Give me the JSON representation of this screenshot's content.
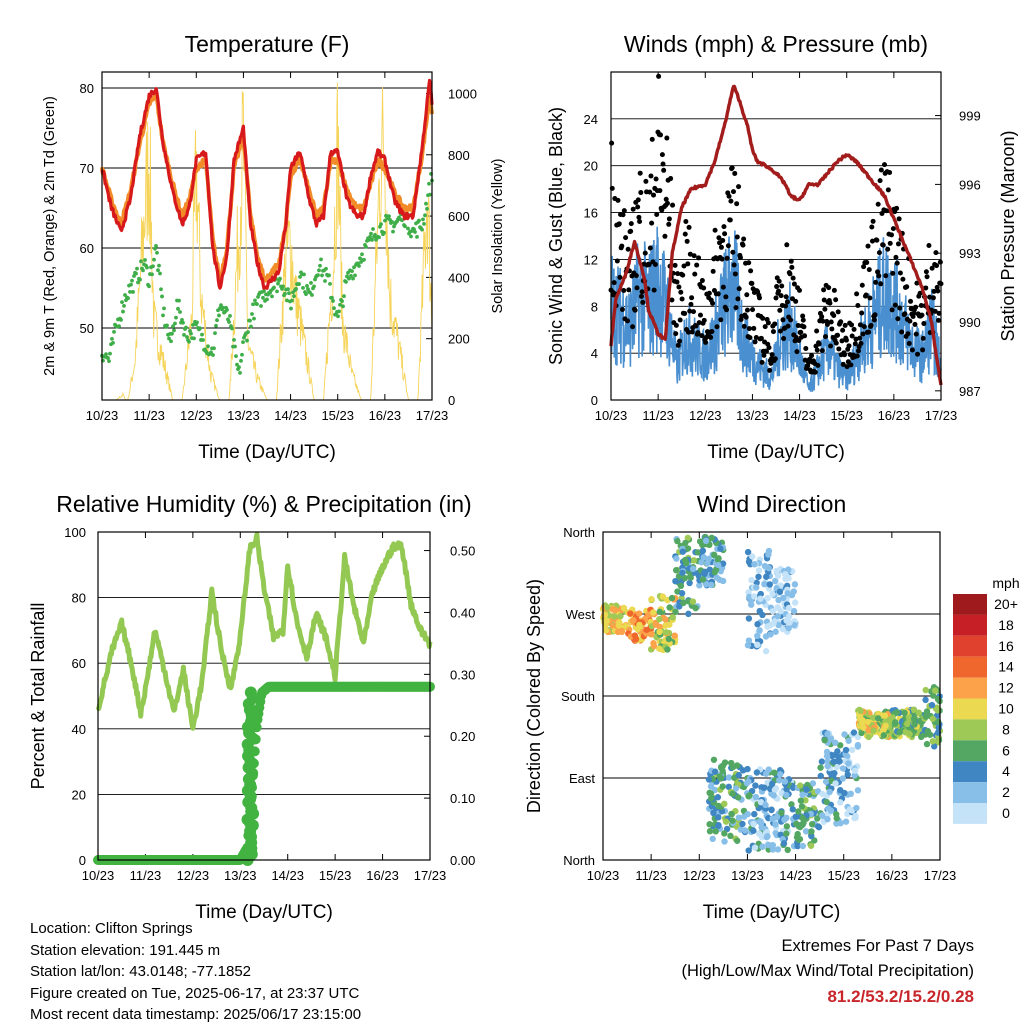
{
  "x_ticks": [
    "10/23",
    "11/23",
    "12/23",
    "13/23",
    "14/23",
    "15/23",
    "16/23",
    "17/23"
  ],
  "x_title": "Time (Day/UTC)",
  "colors": {
    "temp2m": "#d7191c",
    "temp9m": "#f28c28",
    "dewpoint": "#3fae49",
    "solar": "#f6d45a",
    "wind": "#4a90d0",
    "gust": "#000000",
    "pressure": "#a21c1c",
    "rh": "#93c953",
    "precip": "#42b341",
    "extremes": "#c8262a"
  },
  "chart_data": [
    {
      "type": "line",
      "title": "Temperature (F)",
      "ylabel": "2m & 9m T (Red, Orange) & 2m Td (Green)",
      "ylabel_right": "Solar Insolation (Yellow)",
      "ylim": [
        41,
        82
      ],
      "yticks": [
        50,
        60,
        70,
        80
      ],
      "ylim_right": [
        0,
        1070
      ],
      "yticks_right": [
        0,
        200,
        400,
        600,
        800,
        1000
      ],
      "grid": true,
      "series": [
        {
          "x": [
            0,
            0.2,
            0.4,
            0.6,
            0.8,
            1.0,
            1.15,
            1.3,
            1.5,
            1.7,
            1.85,
            2.0,
            2.2,
            2.35,
            2.5,
            2.65,
            2.8,
            3.0,
            3.15,
            3.3,
            3.45,
            3.6,
            3.75,
            3.9,
            4.0,
            4.2,
            4.4,
            4.55,
            4.7,
            4.85,
            5.0,
            5.2,
            5.4,
            5.55,
            5.7,
            5.85,
            6.0,
            6.2,
            6.4,
            6.6,
            6.8,
            6.95,
            7.0
          ],
          "values": [
            70,
            65,
            62,
            66,
            74,
            79,
            80,
            73,
            67,
            63,
            65,
            71,
            72,
            60,
            55,
            59,
            71,
            75,
            63,
            58,
            55,
            56,
            57,
            63,
            70,
            72,
            66,
            63,
            64,
            72,
            72,
            66,
            64,
            64,
            69,
            72,
            71,
            66,
            64,
            64,
            73,
            81,
            78
          ]
        },
        {
          "x": [
            0,
            0.2,
            0.4,
            0.6,
            0.8,
            1.0,
            1.15,
            1.3,
            1.5,
            1.7,
            1.85,
            2.0,
            2.2,
            2.35,
            2.5,
            2.65,
            2.8,
            3.0,
            3.15,
            3.3,
            3.45,
            3.6,
            3.75,
            3.9,
            4.0,
            4.2,
            4.4,
            4.55,
            4.7,
            4.85,
            5.0,
            5.2,
            5.4,
            5.55,
            5.7,
            5.85,
            6.0,
            6.2,
            6.4,
            6.6,
            6.8,
            6.95,
            7.0
          ],
          "values": [
            70,
            66,
            63,
            67,
            73,
            78,
            79,
            73,
            68,
            64,
            66,
            70,
            71,
            61,
            56,
            60,
            70,
            74,
            64,
            59,
            56,
            57,
            58,
            63,
            69,
            71,
            67,
            64,
            65,
            71,
            71,
            67,
            65,
            65,
            68,
            71,
            70,
            67,
            65,
            65,
            72,
            79,
            77
          ]
        },
        {
          "x": [
            0,
            0.15,
            0.3,
            0.5,
            0.7,
            0.9,
            1.0,
            1.15,
            1.3,
            1.45,
            1.6,
            1.8,
            2.0,
            2.2,
            2.35,
            2.5,
            2.7,
            2.9,
            3.0,
            3.2,
            3.4,
            3.6,
            3.8,
            4.0,
            4.2,
            4.4,
            4.6,
            4.8,
            5.0,
            5.2,
            5.4,
            5.6,
            5.8,
            6.0,
            6.2,
            6.4,
            6.6,
            6.8,
            7.0
          ],
          "values": [
            47,
            46,
            50,
            54,
            56,
            58,
            56,
            60,
            52,
            48,
            53,
            49,
            50,
            48,
            47,
            53,
            51,
            44,
            48,
            52,
            54,
            55,
            56,
            53,
            57,
            54,
            58,
            56,
            51,
            56,
            58,
            60,
            62,
            63,
            63,
            64,
            62,
            63,
            69
          ]
        },
        {
          "x": [
            0,
            0.15,
            0.3,
            0.45,
            0.5,
            0.55,
            0.7,
            0.9,
            1.0,
            1.1,
            1.3,
            1.5,
            1.7,
            1.9,
            2.0,
            2.1,
            2.3,
            2.5,
            2.7,
            2.9,
            3.0,
            3.1,
            3.3,
            3.5,
            3.7,
            3.9,
            4.0,
            4.1,
            4.3,
            4.5,
            4.7,
            4.9,
            5.0,
            5.1,
            5.3,
            5.5,
            5.7,
            5.9,
            6.0,
            6.1,
            6.3,
            6.5,
            6.7,
            6.9,
            7.0
          ],
          "values": [
            0,
            0,
            0,
            20,
            0,
            0,
            150,
            700,
            950,
            300,
            150,
            0,
            0,
            300,
            900,
            400,
            100,
            0,
            0,
            650,
            1000,
            200,
            80,
            0,
            0,
            550,
            600,
            400,
            200,
            0,
            0,
            500,
            1000,
            300,
            100,
            0,
            0,
            900,
            1000,
            400,
            200,
            0,
            0,
            800,
            300
          ]
        }
      ]
    },
    {
      "type": "line",
      "title": "Winds (mph) & Pressure (mb)",
      "ylabel": "Sonic Wind & Gust (Blue, Black)",
      "ylabel_right": "Station Pressure (Maroon)",
      "ylim": [
        0,
        28
      ],
      "yticks": [
        0,
        4,
        8,
        12,
        16,
        20,
        24
      ],
      "ylim_right": [
        986.6,
        1000.9
      ],
      "yticks_right": [
        987,
        990,
        993,
        996,
        999
      ],
      "grid": true,
      "series": [
        {
          "x": [
            0,
            0.2,
            0.4,
            0.6,
            0.8,
            1.0,
            1.2,
            1.4,
            1.6,
            1.8,
            2.0,
            2.2,
            2.4,
            2.6,
            2.8,
            3.0,
            3.2,
            3.4,
            3.6,
            3.8,
            4.0,
            4.2,
            4.4,
            4.6,
            4.8,
            5.0,
            5.2,
            5.4,
            5.6,
            5.8,
            6.0,
            6.2,
            6.4,
            6.6,
            6.8,
            7.0
          ],
          "values": [
            9,
            8,
            7,
            10,
            9,
            11,
            8,
            3,
            6,
            5,
            4,
            6,
            9,
            11,
            6,
            4,
            3,
            2,
            6,
            7,
            4,
            1,
            3,
            5,
            3,
            2,
            4,
            6,
            8,
            10,
            9,
            7,
            5,
            4,
            7,
            3
          ]
        },
        {
          "x": [
            0,
            0.2,
            0.4,
            0.6,
            0.8,
            1.0,
            1.2,
            1.4,
            1.6,
            1.8,
            2.0,
            2.2,
            2.4,
            2.6,
            2.8,
            3.0,
            3.2,
            3.4,
            3.6,
            3.8,
            4.0,
            4.2,
            4.4,
            4.6,
            4.8,
            5.0,
            5.2,
            5.4,
            5.6,
            5.8,
            6.0,
            6.2,
            6.4,
            6.6,
            6.8,
            7.0
          ],
          "values": [
            20,
            15,
            12,
            18,
            16,
            24,
            20,
            9,
            13,
            11,
            8,
            12,
            16,
            17,
            14,
            9,
            7,
            5,
            11,
            12,
            8,
            3,
            6,
            10,
            7,
            5,
            8,
            11,
            14,
            18,
            16,
            12,
            9,
            8,
            13,
            10
          ]
        },
        {
          "x": [
            0,
            0.1,
            0.3,
            0.5,
            0.7,
            0.8,
            1.0,
            1.15,
            1.3,
            1.5,
            1.7,
            2.0,
            2.2,
            2.4,
            2.6,
            2.7,
            2.9,
            3.0,
            3.1,
            3.3,
            3.5,
            3.7,
            3.8,
            4.0,
            4.2,
            4.4,
            4.6,
            4.8,
            5.0,
            5.2,
            5.4,
            5.6,
            5.8,
            6.0,
            6.2,
            6.4,
            6.6,
            6.8,
            6.9,
            7.0
          ],
          "values": [
            989,
            991,
            992,
            993.5,
            992,
            990.5,
            989.5,
            989.2,
            993,
            995,
            995.8,
            996,
            997,
            998.5,
            1000.3,
            999.8,
            998.5,
            997.5,
            997,
            996.8,
            996.5,
            996,
            995.5,
            995.3,
            996,
            996,
            996.5,
            997,
            997.3,
            997,
            996.5,
            996,
            995.5,
            994.5,
            993.5,
            992.5,
            991.5,
            990,
            988.5,
            987.3
          ]
        }
      ]
    },
    {
      "type": "line",
      "title": "Relative Humidity (%) & Precipitation (in)",
      "ylabel": "Percent & Total Rainfall",
      "ylim": [
        0,
        100
      ],
      "yticks": [
        0,
        20,
        40,
        60,
        80,
        100
      ],
      "ylim_right": [
        0,
        0.53
      ],
      "yticks_right": [
        "0.00",
        "0.10",
        "0.20",
        "0.30",
        "0.40",
        "0.50"
      ],
      "grid": true,
      "series": [
        {
          "x": [
            0,
            0.15,
            0.3,
            0.5,
            0.7,
            0.9,
            1.0,
            1.2,
            1.4,
            1.6,
            1.8,
            2.0,
            2.2,
            2.4,
            2.6,
            2.8,
            3.0,
            3.2,
            3.35,
            3.5,
            3.7,
            3.9,
            4.0,
            4.2,
            4.4,
            4.6,
            4.8,
            5.0,
            5.2,
            5.4,
            5.6,
            5.8,
            6.0,
            6.2,
            6.4,
            6.6,
            6.8,
            7.0
          ],
          "values": [
            46,
            55,
            64,
            72,
            60,
            45,
            52,
            70,
            58,
            45,
            58,
            40,
            55,
            82,
            64,
            52,
            68,
            95,
            98,
            83,
            68,
            70,
            90,
            72,
            62,
            75,
            68,
            56,
            92,
            77,
            66,
            82,
            89,
            95,
            96,
            78,
            70,
            66
          ]
        },
        {
          "x": [
            0,
            1,
            2,
            3.0,
            3.15,
            3.25,
            3.35,
            3.45,
            3.6,
            4,
            5,
            6,
            7
          ],
          "values": [
            0,
            0,
            0,
            0,
            0.02,
            0.12,
            0.22,
            0.27,
            0.28,
            0.28,
            0.28,
            0.28,
            0.28
          ]
        }
      ]
    },
    {
      "type": "scatter",
      "title": "Wind Direction",
      "ylabel": "Direction (Colored By Speed)",
      "yticks": [
        "North",
        "East",
        "South",
        "West",
        "North"
      ],
      "ylim": [
        0,
        360
      ],
      "grid": true,
      "legend": {
        "title": "mph",
        "labels": [
          "20+",
          "18",
          "16",
          "14",
          "12",
          "10",
          "8",
          "6",
          "4",
          "2",
          "0"
        ],
        "colors": [
          "#9e1a1c",
          "#c62026",
          "#e0412e",
          "#f0672e",
          "#fba24a",
          "#ebd951",
          "#9ec956",
          "#53a762",
          "#3f86c2",
          "#88bfe8",
          "#c4e3f8"
        ]
      },
      "clusters": [
        {
          "x0": 0,
          "x1": 0.5,
          "d0": 250,
          "d1": 280,
          "speed": 10
        },
        {
          "x0": 0.5,
          "x1": 1.0,
          "d0": 240,
          "d1": 275,
          "speed": 12
        },
        {
          "x0": 1.0,
          "x1": 1.5,
          "d0": 230,
          "d1": 290,
          "speed": 9
        },
        {
          "x0": 1.5,
          "x1": 2.0,
          "d0": 270,
          "d1": 355,
          "speed": 5
        },
        {
          "x0": 2.0,
          "x1": 2.5,
          "d0": 300,
          "d1": 355,
          "speed": 4
        },
        {
          "x0": 3.0,
          "x1": 3.5,
          "d0": 220,
          "d1": 340,
          "speed": 2
        },
        {
          "x0": 3.5,
          "x1": 4.0,
          "d0": 250,
          "d1": 320,
          "speed": 1
        },
        {
          "x0": 2.2,
          "x1": 3.0,
          "d0": 20,
          "d1": 110,
          "speed": 5
        },
        {
          "x0": 3.0,
          "x1": 4.0,
          "d0": 10,
          "d1": 100,
          "speed": 3
        },
        {
          "x0": 4.0,
          "x1": 4.5,
          "d0": 15,
          "d1": 85,
          "speed": 5
        },
        {
          "x0": 4.5,
          "x1": 5.3,
          "d0": 40,
          "d1": 140,
          "speed": 3
        },
        {
          "x0": 5.3,
          "x1": 6.0,
          "d0": 135,
          "d1": 165,
          "speed": 9
        },
        {
          "x0": 6.0,
          "x1": 6.7,
          "d0": 135,
          "d1": 165,
          "speed": 7
        },
        {
          "x0": 6.7,
          "x1": 7.0,
          "d0": 120,
          "d1": 190,
          "speed": 6
        }
      ]
    }
  ],
  "footer": {
    "location": "Location: Clifton Springs",
    "elevation": "Station elevation: 191.445 m",
    "latlon": "Station lat/lon: 43.0148; -77.1852",
    "created": "Figure created on Tue, 2025-06-17, at 23:37 UTC",
    "recent": "Most recent data timestamp: 2025/06/17 23:15:00",
    "extremes_title": "Extremes For Past 7 Days",
    "extremes_sub": "(High/Low/Max Wind/Total Precipitation)",
    "extremes_values": "81.2/53.2/15.2/0.28"
  }
}
